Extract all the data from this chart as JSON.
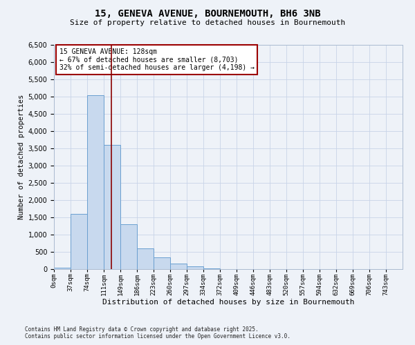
{
  "title1": "15, GENEVA AVENUE, BOURNEMOUTH, BH6 3NB",
  "title2": "Size of property relative to detached houses in Bournemouth",
  "xlabel": "Distribution of detached houses by size in Bournemouth",
  "ylabel": "Number of detached properties",
  "bar_labels": [
    "0sqm",
    "37sqm",
    "74sqm",
    "111sqm",
    "149sqm",
    "186sqm",
    "223sqm",
    "260sqm",
    "297sqm",
    "334sqm",
    "372sqm",
    "409sqm",
    "446sqm",
    "483sqm",
    "520sqm",
    "557sqm",
    "594sqm",
    "632sqm",
    "669sqm",
    "706sqm",
    "743sqm"
  ],
  "bar_heights": [
    50,
    1600,
    5050,
    3600,
    1300,
    600,
    350,
    160,
    80,
    30,
    10,
    5,
    2,
    1,
    1,
    0,
    0,
    0,
    0,
    0,
    0
  ],
  "bar_color": "#c8d9ee",
  "bar_edge_color": "#6a9fd0",
  "vline_color": "#8b0000",
  "annotation_text": "15 GENEVA AVENUE: 128sqm\n← 67% of detached houses are smaller (8,703)\n32% of semi-detached houses are larger (4,198) →",
  "annotation_box_color": "white",
  "annotation_box_edge": "#9b0000",
  "ylim": [
    0,
    6500
  ],
  "yticks": [
    0,
    500,
    1000,
    1500,
    2000,
    2500,
    3000,
    3500,
    4000,
    4500,
    5000,
    5500,
    6000,
    6500
  ],
  "grid_color": "#c8d4e8",
  "background_color": "#eef2f8",
  "footnote1": "Contains HM Land Registry data © Crown copyright and database right 2025.",
  "footnote2": "Contains public sector information licensed under the Open Government Licence v3.0."
}
